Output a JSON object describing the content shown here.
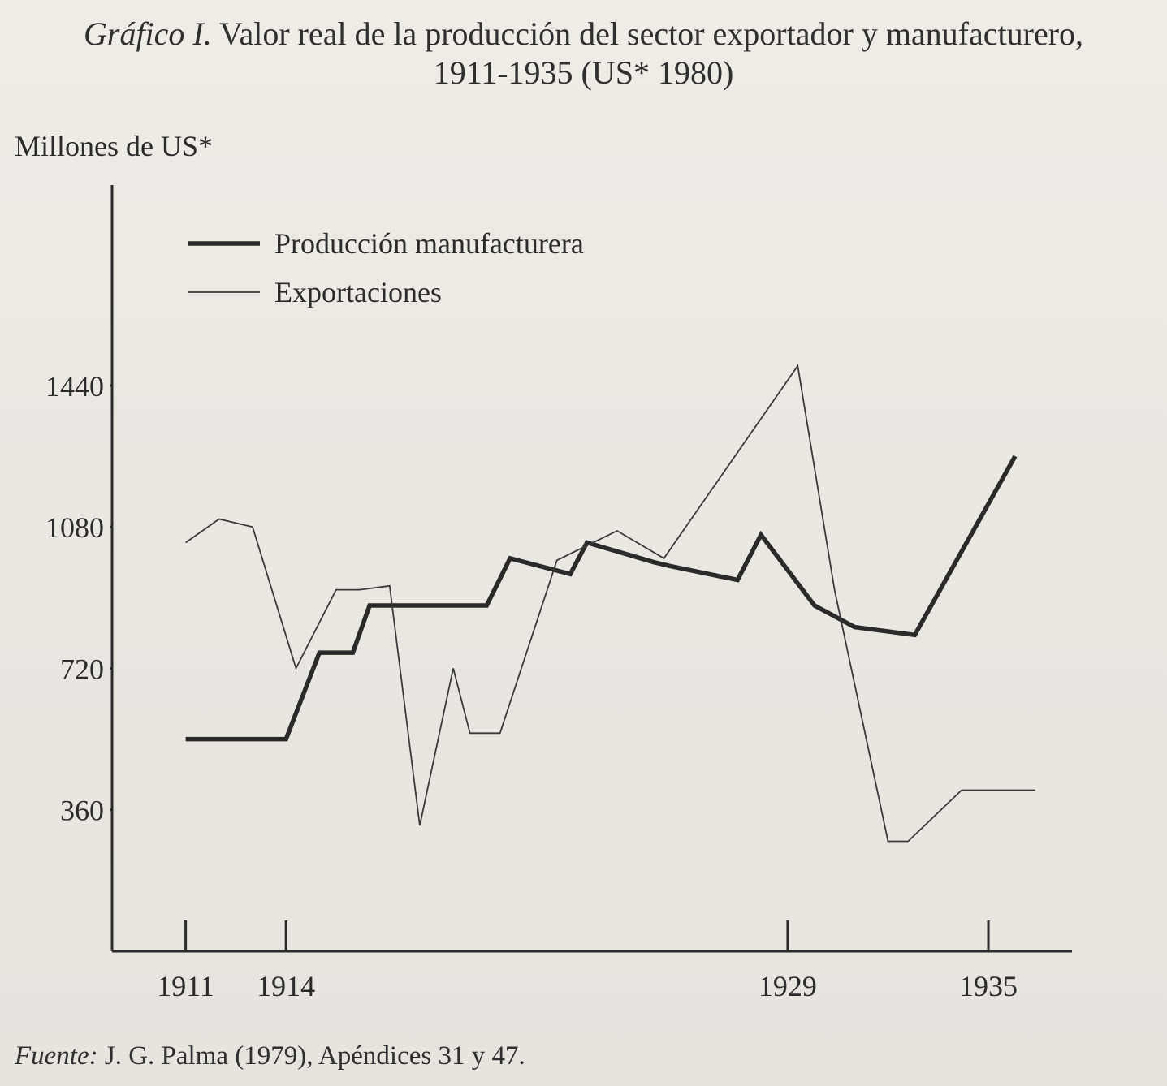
{
  "title": {
    "label": "Gráfico I.",
    "line1": "Valor real de la producción del sector exportador y manufacturero,",
    "line2": "1911-1935 (US* 1980)"
  },
  "source": {
    "label": "Fuente:",
    "text": "J. G. Palma (1979), Apéndices 31 y 47."
  },
  "chart_data": {
    "type": "line",
    "title": "Valor real de la producción del sector exportador y manufacturero, 1911-1935 (US* 1980)",
    "ylabel": "Millones de US*",
    "xlabel": "",
    "y_ticks": [
      360,
      720,
      1080,
      1440
    ],
    "y_tick_labels": [
      "360",
      "720",
      "1080",
      "1440"
    ],
    "x_ticks": [
      1911,
      1914,
      1929,
      1935
    ],
    "x_tick_labels": [
      "1911",
      "1914",
      "1929",
      "1935"
    ],
    "xlim": [
      1908.8,
      1937.5
    ],
    "ylim": [
      0,
      1950
    ],
    "grid": false,
    "legend": "top-left",
    "series": [
      {
        "name": "Producción manufacturera",
        "style": "thick",
        "color": "#2a2a2a",
        "points": [
          [
            1911,
            540
          ],
          [
            1914,
            540
          ],
          [
            1915,
            760
          ],
          [
            1916,
            760
          ],
          [
            1916.5,
            880
          ],
          [
            1920,
            880
          ],
          [
            1920.7,
            1000
          ],
          [
            1922.5,
            960
          ],
          [
            1923,
            1040
          ],
          [
            1925,
            990
          ],
          [
            1925.5,
            980
          ],
          [
            1927.5,
            945
          ],
          [
            1928.2,
            1060
          ],
          [
            1929.8,
            880
          ],
          [
            1931,
            825
          ],
          [
            1932.8,
            805
          ],
          [
            1935.8,
            1260
          ]
        ]
      },
      {
        "name": "Exportaciones",
        "style": "thin",
        "color": "#3a3a3a",
        "points": [
          [
            1911,
            1040
          ],
          [
            1912,
            1100
          ],
          [
            1913,
            1080
          ],
          [
            1914.3,
            720
          ],
          [
            1915.5,
            920
          ],
          [
            1916.2,
            920
          ],
          [
            1917.1,
            930
          ],
          [
            1918,
            320
          ],
          [
            1919,
            720
          ],
          [
            1919.5,
            555
          ],
          [
            1920.4,
            555
          ],
          [
            1922.1,
            995
          ],
          [
            1923.9,
            1070
          ],
          [
            1925.3,
            1000
          ],
          [
            1929.3,
            1490
          ],
          [
            1930.4,
            920
          ],
          [
            1932,
            280
          ],
          [
            1932.6,
            280
          ],
          [
            1934.2,
            410
          ],
          [
            1936.4,
            410
          ]
        ]
      }
    ]
  }
}
